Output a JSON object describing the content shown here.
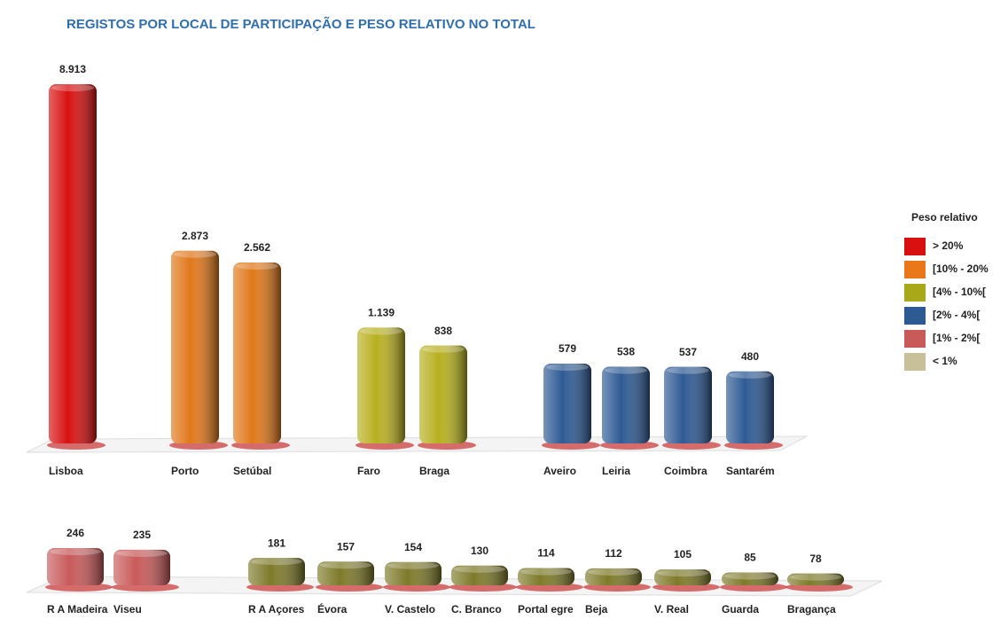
{
  "title": "REGISTOS POR LOCAL DE PARTICIPAÇÃO E PESO RELATIVO NO TOTAL",
  "legend": {
    "title": "Peso relativo",
    "entries": [
      {
        "label": "> 20%",
        "color": "#d81010"
      },
      {
        "label": "[10% - 20%",
        "color": "#e8781a"
      },
      {
        "label": "[4% - 10%[",
        "color": "#a8a818"
      },
      {
        "label": "[2% - 4%[",
        "color": "#2e5a94"
      },
      {
        "label": "[1% - 2%[",
        "color": "#c85a5a"
      },
      {
        "label": "< 1%",
        "color": "#c8c098"
      }
    ]
  },
  "chart_data": [
    {
      "type": "bar",
      "categories": [
        "Lisboa",
        "Porto",
        "Setúbal",
        "Faro",
        "Braga",
        "Aveiro",
        "Leiria",
        "Coimbra",
        "Santarém"
      ],
      "values": [
        8913,
        2873,
        2562,
        1139,
        838,
        579,
        538,
        537,
        480
      ],
      "value_labels": [
        "8.913",
        "2.873",
        "2.562",
        "1.139",
        "838",
        "579",
        "538",
        "537",
        "480"
      ],
      "colors": [
        "#d81010",
        "#e0781a",
        "#e0781a",
        "#b8b020",
        "#b8b020",
        "#2e5a94",
        "#2e5a94",
        "#2e5a94",
        "#2e5a94"
      ]
    },
    {
      "type": "bar",
      "categories": [
        "R A Madeira",
        "Viseu",
        "R A Açores",
        "Évora",
        "V. Castelo",
        "C. Branco",
        "Portal egre",
        "Beja",
        "V. Real",
        "Guarda",
        "Bragança"
      ],
      "values": [
        246,
        235,
        181,
        157,
        154,
        130,
        114,
        112,
        105,
        85,
        78
      ],
      "colors": [
        "#c85a5a",
        "#c85a5a",
        "#7e7a2a",
        "#7e7a2a",
        "#7e7a2a",
        "#7e7a2a",
        "#7e7a2a",
        "#7e7a2a",
        "#7e7a2a",
        "#7e7a2a",
        "#7e7a2a"
      ]
    }
  ]
}
